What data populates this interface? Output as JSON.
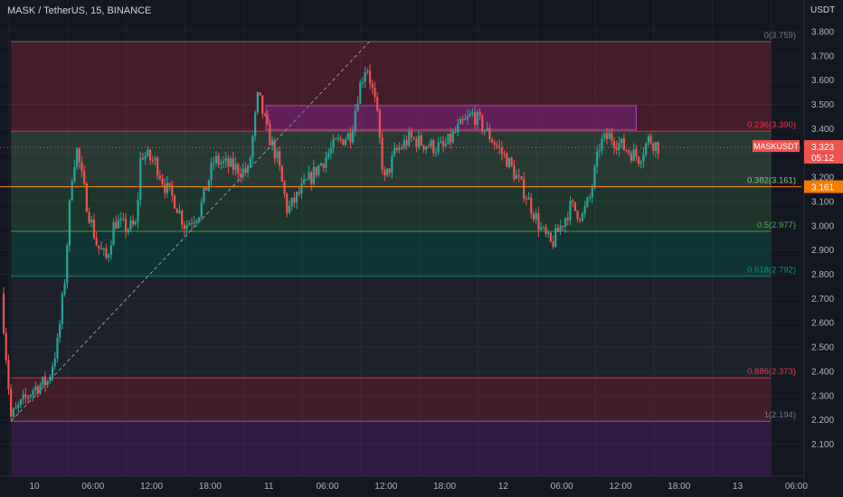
{
  "header": {
    "symbol_line": "MASK / TetherUS, 15, BINANCE",
    "price_unit": "USDT"
  },
  "colors": {
    "background": "#131722",
    "up_candle": "#26a69a",
    "down_candle": "#ef5350",
    "axis_text": "#b2b5be",
    "current_price_tag": "#ef5350",
    "level_price_tag": "#f57c00"
  },
  "price_tags": {
    "symbol": "MASKUSDT",
    "last_price": "3.323",
    "countdown": "05:12",
    "level_price": "3.161"
  },
  "chart_data": {
    "type": "candlestick",
    "title": "MASK / TetherUS, 15, BINANCE",
    "ylabel": "USDT",
    "ylim": [
      2.03,
      3.855
    ],
    "y_ticks": [
      "3.800",
      "3.700",
      "3.600",
      "3.500",
      "3.400",
      "3.300",
      "3.200",
      "3.100",
      "3.000",
      "2.900",
      "2.800",
      "2.700",
      "2.600",
      "2.500",
      "2.400",
      "2.300",
      "2.200",
      "2.100"
    ],
    "x_ticks": [
      {
        "label": "10",
        "hour": 0
      },
      {
        "label": "06:00",
        "hour": 6
      },
      {
        "label": "12:00",
        "hour": 12
      },
      {
        "label": "18:00",
        "hour": 18
      },
      {
        "label": "11",
        "hour": 24
      },
      {
        "label": "06:00",
        "hour": 30
      },
      {
        "label": "12:00",
        "hour": 36
      },
      {
        "label": "18:00",
        "hour": 42
      },
      {
        "label": "12",
        "hour": 48
      },
      {
        "label": "06:00",
        "hour": 54
      },
      {
        "label": "12:00",
        "hour": 60
      },
      {
        "label": "18:00",
        "hour": 66
      },
      {
        "label": "13",
        "hour": 72
      },
      {
        "label": "06:00",
        "hour": 78
      }
    ],
    "fib_retracement": {
      "from": {
        "hour": 0.2,
        "price": 2.194
      },
      "to": {
        "hour": 36.9,
        "price": 3.759
      },
      "extend_to_hour": 78,
      "levels": [
        {
          "ratio": "0",
          "price": 3.759,
          "label": "0(3.759)",
          "color": "#787b86"
        },
        {
          "ratio": "0.236",
          "price": 3.39,
          "label": "0.236(3.390)",
          "color": "#f23645"
        },
        {
          "ratio": "0.382",
          "price": 3.161,
          "label": "0.382(3.161)",
          "color": "#81c784"
        },
        {
          "ratio": "0.5",
          "price": 2.977,
          "label": "0.5(2.977)",
          "color": "#4caf50"
        },
        {
          "ratio": "0.618",
          "price": 2.792,
          "label": "0.618(2.792)",
          "color": "#089981"
        },
        {
          "ratio": "0.886",
          "price": 2.373,
          "label": "0.886(2.373)",
          "color": "#f23645"
        },
        {
          "ratio": "1",
          "price": 2.194,
          "label": "1(2.194)",
          "color": "#787b86"
        }
      ]
    },
    "zone_box": {
      "from_hour": 26.3,
      "to_hour": 64.2,
      "top": 3.495,
      "bottom": 3.395
    },
    "current_price": 3.323,
    "price_line": 3.161,
    "series_close_path": [
      {
        "hour": -0.8,
        "price": 2.72
      },
      {
        "hour": 0.2,
        "price": 2.21
      },
      {
        "hour": 2.5,
        "price": 2.33
      },
      {
        "hour": 4,
        "price": 2.36
      },
      {
        "hour": 5,
        "price": 2.52
      },
      {
        "hour": 5.7,
        "price": 2.78
      },
      {
        "hour": 6.4,
        "price": 3.2
      },
      {
        "hour": 6.9,
        "price": 3.32
      },
      {
        "hour": 8,
        "price": 3.08
      },
      {
        "hour": 9,
        "price": 2.92
      },
      {
        "hour": 10,
        "price": 2.86
      },
      {
        "hour": 10.8,
        "price": 3.02
      },
      {
        "hour": 12,
        "price": 2.99
      },
      {
        "hour": 13,
        "price": 3.0
      },
      {
        "hour": 13.5,
        "price": 3.3
      },
      {
        "hour": 15,
        "price": 3.26
      },
      {
        "hour": 16,
        "price": 3.16
      },
      {
        "hour": 17,
        "price": 3.1
      },
      {
        "hour": 18,
        "price": 3.0
      },
      {
        "hour": 19.5,
        "price": 3.06
      },
      {
        "hour": 21,
        "price": 3.27
      },
      {
        "hour": 23,
        "price": 3.24
      },
      {
        "hour": 24.5,
        "price": 3.22
      },
      {
        "hour": 25.5,
        "price": 3.54
      },
      {
        "hour": 26.5,
        "price": 3.38
      },
      {
        "hour": 27.5,
        "price": 3.27
      },
      {
        "hour": 28.5,
        "price": 3.06
      },
      {
        "hour": 30,
        "price": 3.15
      },
      {
        "hour": 32,
        "price": 3.26
      },
      {
        "hour": 33.5,
        "price": 3.34
      },
      {
        "hour": 35,
        "price": 3.38
      },
      {
        "hour": 35.8,
        "price": 3.56
      },
      {
        "hour": 36.6,
        "price": 3.67
      },
      {
        "hour": 37.6,
        "price": 3.48
      },
      {
        "hour": 38.4,
        "price": 3.18
      },
      {
        "hour": 39.5,
        "price": 3.3
      },
      {
        "hour": 41,
        "price": 3.36
      },
      {
        "hour": 43,
        "price": 3.33
      },
      {
        "hour": 44.5,
        "price": 3.32
      },
      {
        "hour": 46,
        "price": 3.4
      },
      {
        "hour": 47.5,
        "price": 3.46
      },
      {
        "hour": 49,
        "price": 3.38
      },
      {
        "hour": 51,
        "price": 3.27
      },
      {
        "hour": 53,
        "price": 3.12
      },
      {
        "hour": 54.5,
        "price": 2.98
      },
      {
        "hour": 55.5,
        "price": 2.92
      },
      {
        "hour": 56.5,
        "price": 3.0
      },
      {
        "hour": 57.5,
        "price": 3.08
      },
      {
        "hour": 58.7,
        "price": 3.04
      },
      {
        "hour": 59.5,
        "price": 3.12
      },
      {
        "hour": 60.5,
        "price": 3.34
      },
      {
        "hour": 61.5,
        "price": 3.37
      },
      {
        "hour": 63,
        "price": 3.32
      },
      {
        "hour": 64.5,
        "price": 3.28
      },
      {
        "hour": 65.5,
        "price": 3.36
      },
      {
        "hour": 66.5,
        "price": 3.323
      }
    ]
  }
}
